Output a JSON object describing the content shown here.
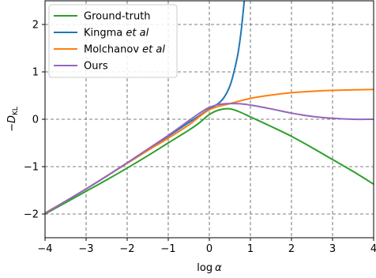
{
  "chart_data": {
    "type": "line",
    "xlabel_main": "log",
    "xlabel_symbol": "α",
    "ylabel_main": "−D",
    "ylabel_sub": "KL",
    "xlim": [
      -4,
      4
    ],
    "ylim": [
      -2.5,
      2.5
    ],
    "xticks": [
      -4,
      -3,
      -2,
      -1,
      0,
      1,
      2,
      3,
      4
    ],
    "xtick_labels": [
      "−4",
      "−3",
      "−2",
      "−1",
      "0",
      "1",
      "2",
      "3",
      "4"
    ],
    "yticks": [
      -2,
      -1,
      0,
      1,
      2
    ],
    "ytick_labels": [
      "−2",
      "−1",
      "0",
      "1",
      "2"
    ],
    "grid": true,
    "legend_position": "top-left",
    "series": [
      {
        "name": "Ground-truth",
        "label_parts": [
          {
            "text": "Ground-truth",
            "italic": false
          }
        ],
        "color": "#2ca02c",
        "points": [
          [
            -4,
            -2.0
          ],
          [
            -3.5,
            -1.76
          ],
          [
            -3,
            -1.52
          ],
          [
            -2.5,
            -1.28
          ],
          [
            -2,
            -1.03
          ],
          [
            -1.5,
            -0.77
          ],
          [
            -1,
            -0.5
          ],
          [
            -0.5,
            -0.23
          ],
          [
            -0.25,
            -0.08
          ],
          [
            0,
            0.1
          ],
          [
            0.25,
            0.2
          ],
          [
            0.5,
            0.22
          ],
          [
            0.75,
            0.15
          ],
          [
            1,
            0.05
          ],
          [
            1.5,
            -0.15
          ],
          [
            2,
            -0.36
          ],
          [
            2.5,
            -0.6
          ],
          [
            3,
            -0.85
          ],
          [
            3.5,
            -1.1
          ],
          [
            4,
            -1.37
          ]
        ]
      },
      {
        "name": "Kingma et al",
        "label_parts": [
          {
            "text": "Kingma ",
            "italic": false
          },
          {
            "text": "et al",
            "italic": true
          }
        ],
        "color": "#1f77b4",
        "points": [
          [
            -4,
            -1.98
          ],
          [
            -3.5,
            -1.73
          ],
          [
            -3,
            -1.47
          ],
          [
            -2.5,
            -1.2
          ],
          [
            -2,
            -0.92
          ],
          [
            -1.5,
            -0.64
          ],
          [
            -1,
            -0.36
          ],
          [
            -0.5,
            -0.07
          ],
          [
            -0.25,
            0.07
          ],
          [
            0,
            0.22
          ],
          [
            0.2,
            0.32
          ],
          [
            0.35,
            0.45
          ],
          [
            0.5,
            0.7
          ],
          [
            0.6,
            1.0
          ],
          [
            0.7,
            1.4
          ],
          [
            0.78,
            1.9
          ],
          [
            0.85,
            2.5
          ]
        ]
      },
      {
        "name": "Molchanov et al",
        "label_parts": [
          {
            "text": "Molchanov ",
            "italic": false
          },
          {
            "text": "et al",
            "italic": true
          }
        ],
        "color": "#ff7f0e",
        "points": [
          [
            -4,
            -1.98
          ],
          [
            -3.5,
            -1.73
          ],
          [
            -3,
            -1.47
          ],
          [
            -2.5,
            -1.2
          ],
          [
            -2,
            -0.93
          ],
          [
            -1.5,
            -0.66
          ],
          [
            -1,
            -0.4
          ],
          [
            -0.5,
            -0.12
          ],
          [
            0,
            0.2
          ],
          [
            0.5,
            0.33
          ],
          [
            1,
            0.44
          ],
          [
            1.5,
            0.51
          ],
          [
            2,
            0.56
          ],
          [
            2.5,
            0.59
          ],
          [
            3,
            0.61
          ],
          [
            3.5,
            0.62
          ],
          [
            4,
            0.63
          ]
        ]
      },
      {
        "name": "Ours",
        "label_parts": [
          {
            "text": "Ours",
            "italic": false
          }
        ],
        "color": "#9467bd",
        "points": [
          [
            -4,
            -1.99
          ],
          [
            -3.5,
            -1.73
          ],
          [
            -3,
            -1.47
          ],
          [
            -2.5,
            -1.2
          ],
          [
            -2,
            -0.92
          ],
          [
            -1.5,
            -0.63
          ],
          [
            -1,
            -0.34
          ],
          [
            -0.5,
            -0.03
          ],
          [
            -0.2,
            0.15
          ],
          [
            0,
            0.25
          ],
          [
            0.3,
            0.32
          ],
          [
            0.7,
            0.33
          ],
          [
            1,
            0.3
          ],
          [
            1.5,
            0.22
          ],
          [
            2,
            0.13
          ],
          [
            2.5,
            0.06
          ],
          [
            3,
            0.02
          ],
          [
            3.5,
            0.0
          ],
          [
            4,
            0.0
          ]
        ]
      }
    ]
  }
}
